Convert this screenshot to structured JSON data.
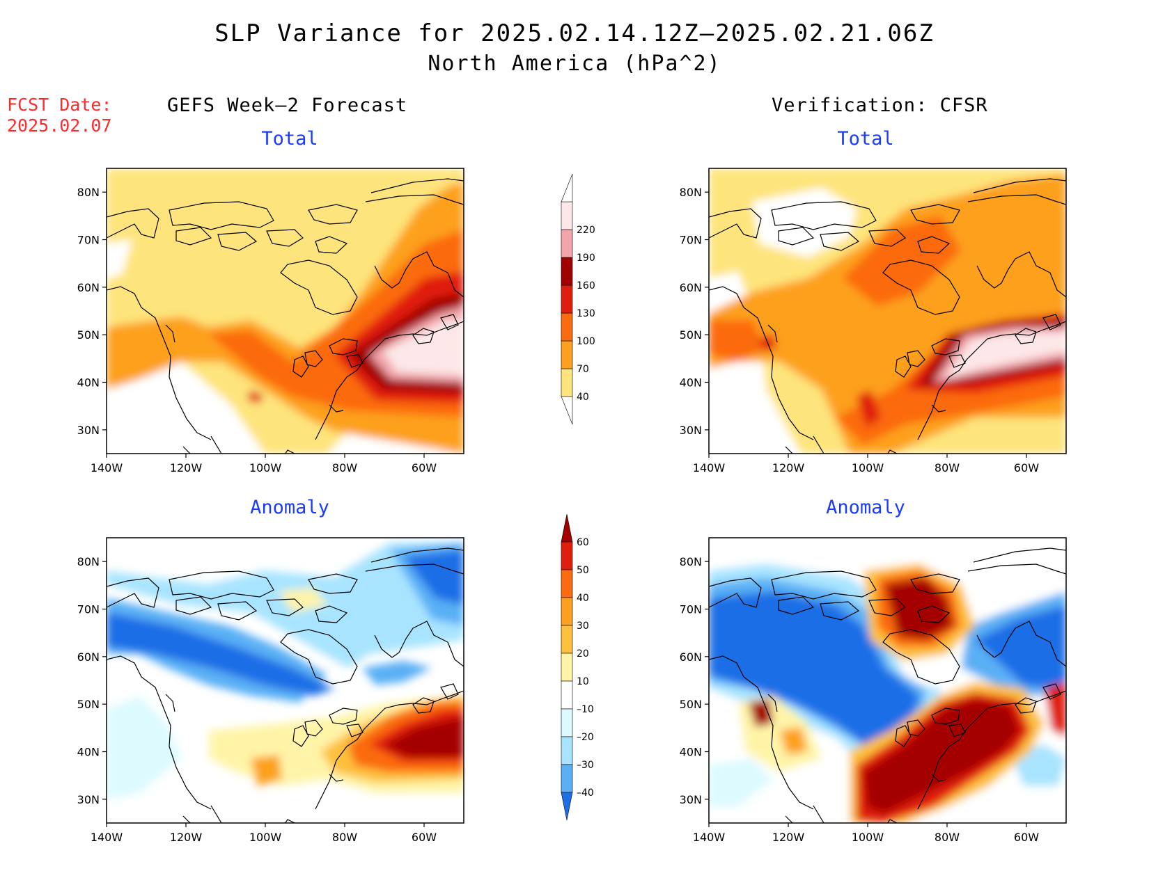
{
  "title": "SLP Variance for 2025.02.14.12Z–2025.02.21.06Z",
  "subtitle": "North America (hPa^2)",
  "fcst_date_label": "FCST Date:",
  "fcst_date": "2025.02.07",
  "left_column_title": "GEFS Week–2 Forecast",
  "right_column_title": "Verification: CFSR",
  "panels": {
    "fcst_total_label": "Total",
    "fcst_anom_label": "Anomaly",
    "verif_total_label": "Total",
    "verif_anom_label": "Anomaly"
  },
  "axes": {
    "lat_labels": [
      "80N",
      "70N",
      "60N",
      "50N",
      "40N",
      "30N"
    ],
    "lon_labels": [
      "140W",
      "120W",
      "100W",
      "80W",
      "60W"
    ],
    "lat_range": [
      25,
      85
    ],
    "lon_range": [
      -140,
      -50
    ]
  },
  "total_colorbar": {
    "levels": [
      "40",
      "70",
      "100",
      "130",
      "160",
      "190",
      "220"
    ],
    "colors": [
      "#fee47c",
      "#fda01e",
      "#fb6b10",
      "#e01e0e",
      "#a00000",
      "#f2a6ab",
      "#fde7e8"
    ]
  },
  "anomaly_colorbar": {
    "levels": [
      "60",
      "50",
      "40",
      "30",
      "20",
      "10",
      "–10",
      "–20",
      "–30",
      "–40"
    ],
    "colors": [
      "#a50000",
      "#e01e0e",
      "#fb6b10",
      "#fda01e",
      "#fdc03c",
      "#fff4a8",
      "#ffffff",
      "#dcfaff",
      "#a8e4ff",
      "#5ab0f5",
      "#1e6ee6"
    ]
  }
}
